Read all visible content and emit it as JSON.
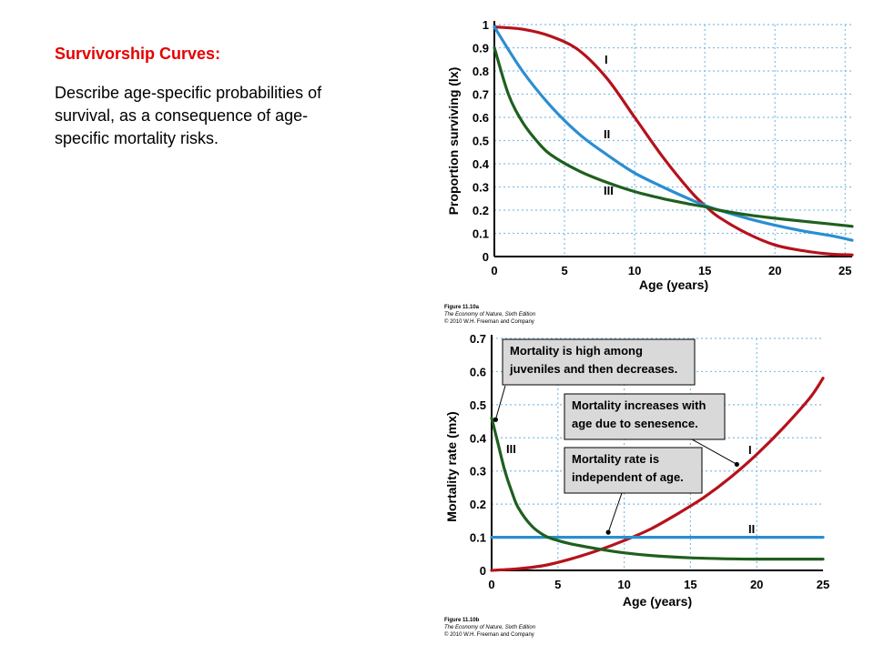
{
  "slide": {
    "heading": "Survivorship Curves:",
    "description": "Describe age-specific probabilities of survival, as a consequence of age-specific mortality risks."
  },
  "colors": {
    "type_I": "#b5121b",
    "type_II": "#2b8ed1",
    "type_III": "#1f5f1f",
    "heading": "#e60000",
    "grid": "#7fbfe6"
  },
  "chart_data": [
    {
      "type": "line",
      "title": "",
      "xlabel": "Age (years)",
      "ylabel": "Proportion surviving (lx)",
      "xlim": [
        0,
        25.5
      ],
      "ylim": [
        0,
        1
      ],
      "x_ticks": [
        0,
        5,
        10,
        15,
        20,
        25
      ],
      "x_tick_labels": [
        "0",
        "5",
        "10",
        "15",
        "20",
        "25"
      ],
      "y_ticks": [
        0,
        0.1,
        0.2,
        0.3,
        0.4,
        0.5,
        0.6,
        0.7,
        0.8,
        0.9,
        1
      ],
      "y_tick_labels": [
        "0",
        "0.1",
        "0.2",
        "0.3",
        "0.4",
        "0.5",
        "0.6",
        "0.7",
        "0.8",
        "0.9",
        "1"
      ],
      "grid": true,
      "series": [
        {
          "name": "I",
          "color": "#b5121b",
          "x": [
            0,
            2,
            4,
            6,
            8,
            10,
            12,
            14,
            15,
            16,
            18,
            20,
            22,
            24,
            25.5
          ],
          "y": [
            0.99,
            0.98,
            0.95,
            0.89,
            0.77,
            0.6,
            0.43,
            0.28,
            0.22,
            0.17,
            0.1,
            0.05,
            0.025,
            0.01,
            0.007
          ]
        },
        {
          "name": "II",
          "color": "#2b8ed1",
          "x": [
            0,
            2,
            4,
            6,
            8,
            10,
            12,
            14,
            15,
            16,
            18,
            20,
            22,
            24,
            25.5
          ],
          "y": [
            0.99,
            0.8,
            0.65,
            0.53,
            0.44,
            0.36,
            0.3,
            0.245,
            0.22,
            0.2,
            0.165,
            0.135,
            0.11,
            0.09,
            0.07
          ]
        },
        {
          "name": "III",
          "color": "#1f5f1f",
          "x": [
            0,
            1,
            2,
            3,
            4,
            6,
            8,
            10,
            12,
            14,
            15,
            16,
            18,
            20,
            22,
            24,
            25.5
          ],
          "y": [
            0.9,
            0.7,
            0.58,
            0.5,
            0.44,
            0.37,
            0.32,
            0.28,
            0.25,
            0.225,
            0.215,
            0.2,
            0.18,
            0.165,
            0.152,
            0.14,
            0.13
          ]
        }
      ],
      "credit": [
        "Figure 11.10a",
        "The Economy of Nature, Sixth Edition",
        "© 2010 W.H. Freeman and Company"
      ]
    },
    {
      "type": "line",
      "title": "",
      "xlabel": "Age (years)",
      "ylabel": "Mortality rate (mx)",
      "xlim": [
        0,
        25
      ],
      "ylim": [
        0,
        0.7
      ],
      "x_ticks": [
        0,
        5,
        10,
        15,
        20,
        25
      ],
      "x_tick_labels": [
        "0",
        "5",
        "10",
        "15",
        "20",
        "25"
      ],
      "y_ticks": [
        0,
        0.1,
        0.2,
        0.3,
        0.4,
        0.5,
        0.6,
        0.7
      ],
      "y_tick_labels": [
        "0",
        "0.1",
        "0.2",
        "0.3",
        "0.4",
        "0.5",
        "0.6",
        "0.7"
      ],
      "grid": true,
      "series": [
        {
          "name": "I",
          "color": "#b5121b",
          "x": [
            0,
            2,
            4,
            6,
            8,
            10,
            12,
            14,
            16,
            18,
            20,
            22,
            24,
            25
          ],
          "y": [
            0.0,
            0.005,
            0.015,
            0.035,
            0.06,
            0.09,
            0.125,
            0.17,
            0.22,
            0.28,
            0.35,
            0.43,
            0.52,
            0.58
          ]
        },
        {
          "name": "II",
          "color": "#2b8ed1",
          "x": [
            0,
            25
          ],
          "y": [
            0.1,
            0.1
          ]
        },
        {
          "name": "III",
          "color": "#1f5f1f",
          "x": [
            0,
            0.5,
            1,
            1.5,
            2,
            3,
            4,
            5,
            6,
            8,
            10,
            12,
            15,
            18,
            20,
            22,
            25
          ],
          "y": [
            0.46,
            0.38,
            0.3,
            0.24,
            0.19,
            0.135,
            0.105,
            0.09,
            0.08,
            0.065,
            0.053,
            0.045,
            0.038,
            0.035,
            0.034,
            0.034,
            0.034
          ]
        }
      ],
      "annotations": [
        {
          "text": [
            "Mortality is high among",
            "juveniles and then decreases."
          ],
          "target": {
            "x": 0.3,
            "y": 0.455
          }
        },
        {
          "text": [
            "Mortality increases with",
            "age due to senesence."
          ],
          "target": {
            "x": 18.5,
            "y": 0.32
          }
        },
        {
          "text": [
            "Mortality rate is",
            "independent of age."
          ],
          "target": {
            "x": 8.8,
            "y": 0.115
          }
        }
      ],
      "credit": [
        "Figure 11.10b",
        "The Economy of Nature, Sixth Edition",
        "© 2010 W.H. Freeman and Company"
      ]
    }
  ]
}
